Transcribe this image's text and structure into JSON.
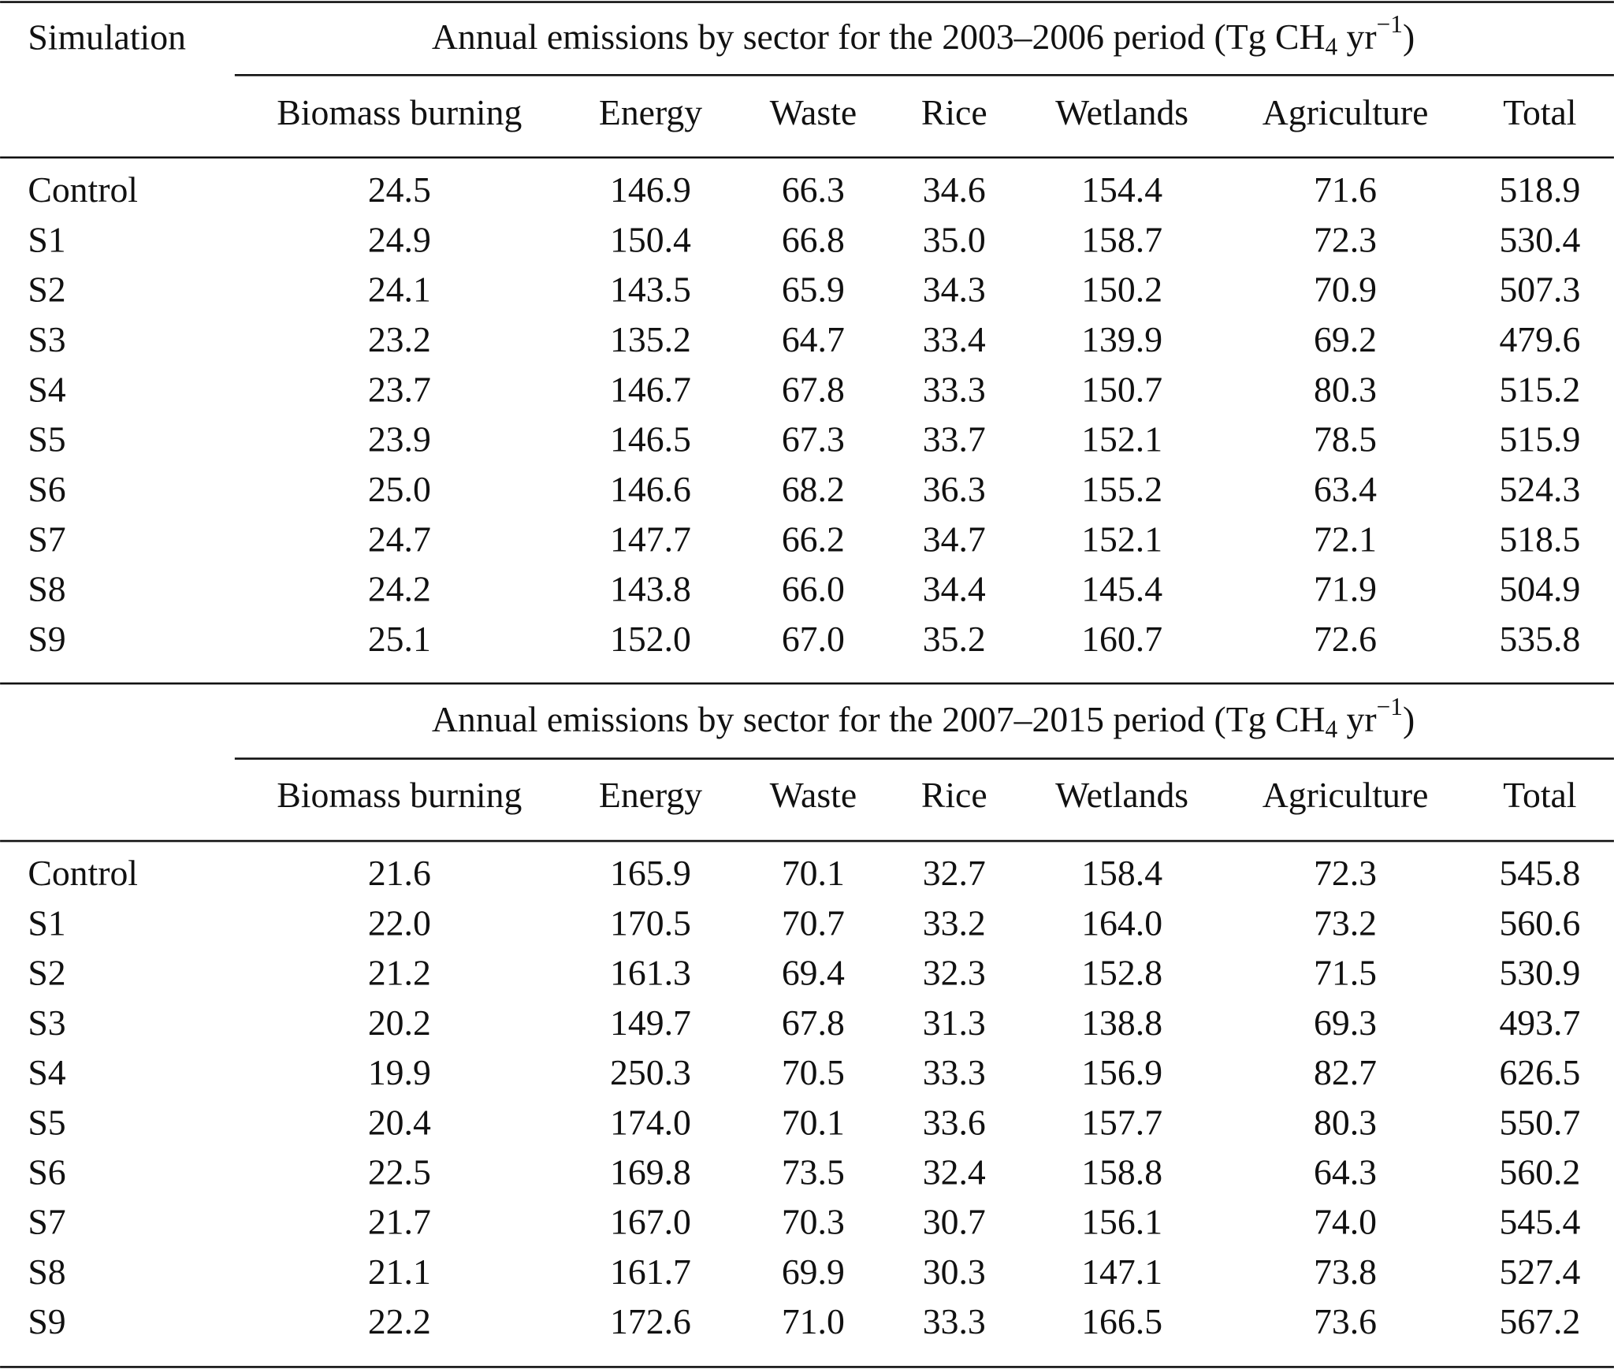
{
  "table": {
    "stub_header": "Simulation",
    "sections": [
      {
        "caption": {
          "text": "Annual emissions by sector for the 2003–2006 period (Tg CH",
          "subscript": "4",
          "unit": " yr",
          "superscript": "−1",
          "close": ")"
        },
        "columns": [
          "Biomass burning",
          "Energy",
          "Waste",
          "Rice",
          "Wetlands",
          "Agriculture",
          "Total"
        ],
        "rows": [
          [
            "Control",
            "24.5",
            "146.9",
            "66.3",
            "34.6",
            "154.4",
            "71.6",
            "518.9"
          ],
          [
            "S1",
            "24.9",
            "150.4",
            "66.8",
            "35.0",
            "158.7",
            "72.3",
            "530.4"
          ],
          [
            "S2",
            "24.1",
            "143.5",
            "65.9",
            "34.3",
            "150.2",
            "70.9",
            "507.3"
          ],
          [
            "S3",
            "23.2",
            "135.2",
            "64.7",
            "33.4",
            "139.9",
            "69.2",
            "479.6"
          ],
          [
            "S4",
            "23.7",
            "146.7",
            "67.8",
            "33.3",
            "150.7",
            "80.3",
            "515.2"
          ],
          [
            "S5",
            "23.9",
            "146.5",
            "67.3",
            "33.7",
            "152.1",
            "78.5",
            "515.9"
          ],
          [
            "S6",
            "25.0",
            "146.6",
            "68.2",
            "36.3",
            "155.2",
            "63.4",
            "524.3"
          ],
          [
            "S7",
            "24.7",
            "147.7",
            "66.2",
            "34.7",
            "152.1",
            "72.1",
            "518.5"
          ],
          [
            "S8",
            "24.2",
            "143.8",
            "66.0",
            "34.4",
            "145.4",
            "71.9",
            "504.9"
          ],
          [
            "S9",
            "25.1",
            "152.0",
            "67.0",
            "35.2",
            "160.7",
            "72.6",
            "535.8"
          ]
        ]
      },
      {
        "caption": {
          "text": "Annual emissions by sector for the 2007–2015 period (Tg CH",
          "subscript": "4",
          "unit": " yr",
          "superscript": "−1",
          "close": ")"
        },
        "columns": [
          "Biomass burning",
          "Energy",
          "Waste",
          "Rice",
          "Wetlands",
          "Agriculture",
          "Total"
        ],
        "rows": [
          [
            "Control",
            "21.6",
            "165.9",
            "70.1",
            "32.7",
            "158.4",
            "72.3",
            "545.8"
          ],
          [
            "S1",
            "22.0",
            "170.5",
            "70.7",
            "33.2",
            "164.0",
            "73.2",
            "560.6"
          ],
          [
            "S2",
            "21.2",
            "161.3",
            "69.4",
            "32.3",
            "152.8",
            "71.5",
            "530.9"
          ],
          [
            "S3",
            "20.2",
            "149.7",
            "67.8",
            "31.3",
            "138.8",
            "69.3",
            "493.7"
          ],
          [
            "S4",
            "19.9",
            "250.3",
            "70.5",
            "33.3",
            "156.9",
            "82.7",
            "626.5"
          ],
          [
            "S5",
            "20.4",
            "174.0",
            "70.1",
            "33.6",
            "157.7",
            "80.3",
            "550.7"
          ],
          [
            "S6",
            "22.5",
            "169.8",
            "73.5",
            "32.4",
            "158.8",
            "64.3",
            "560.2"
          ],
          [
            "S7",
            "21.7",
            "167.0",
            "70.3",
            "30.7",
            "156.1",
            "74.0",
            "545.4"
          ],
          [
            "S8",
            "21.1",
            "161.7",
            "69.9",
            "30.3",
            "147.1",
            "73.8",
            "527.4"
          ],
          [
            "S9",
            "22.2",
            "172.6",
            "71.0",
            "33.3",
            "166.5",
            "73.6",
            "567.2"
          ]
        ]
      }
    ]
  }
}
